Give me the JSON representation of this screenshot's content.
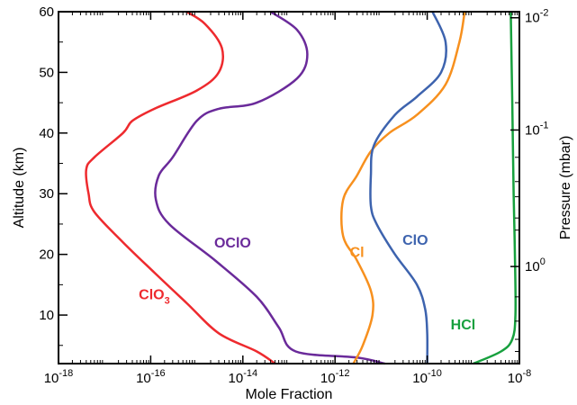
{
  "chart_data": {
    "type": "line",
    "xlabel": "Mole Fraction",
    "ylabel": "Altitude (km)",
    "y2label": "Pressure (mbar)",
    "xscale": "log",
    "xlim": [
      1e-18,
      1e-08
    ],
    "ylim": [
      2,
      60
    ],
    "x_ticks": [
      {
        "value": 1e-18,
        "base": "10",
        "exp": "-18"
      },
      {
        "value": 1e-16,
        "base": "10",
        "exp": "-16"
      },
      {
        "value": 1e-14,
        "base": "10",
        "exp": "-14"
      },
      {
        "value": 1e-12,
        "base": "10",
        "exp": "-12"
      },
      {
        "value": 1e-10,
        "base": "10",
        "exp": "-10"
      },
      {
        "value": 1e-08,
        "base": "10",
        "exp": "-8"
      }
    ],
    "y_ticks": [
      {
        "value": 10,
        "label": "10"
      },
      {
        "value": 20,
        "label": "20"
      },
      {
        "value": 30,
        "label": "30"
      },
      {
        "value": 40,
        "label": "40"
      },
      {
        "value": 50,
        "label": "50"
      },
      {
        "value": 60,
        "label": "60"
      }
    ],
    "y2_ticks": [
      {
        "altitude": 59,
        "base": "10",
        "exp": "-2"
      },
      {
        "altitude": 40.5,
        "base": "10",
        "exp": "-1"
      },
      {
        "altitude": 18,
        "base": "10",
        "exp": "0"
      }
    ],
    "series": [
      {
        "name": "ClO",
        "sub": "3",
        "color": "#ee2a2e",
        "label_pos": [
          1.2e-16,
          13.5
        ],
        "points": [
          [
            6e-16,
            60
          ],
          [
            1.5e-15,
            58
          ],
          [
            3.5e-15,
            54
          ],
          [
            3e-15,
            50
          ],
          [
            1e-15,
            47
          ],
          [
            1.2e-16,
            44
          ],
          [
            4e-17,
            42
          ],
          [
            2.5e-17,
            40
          ],
          [
            6e-18,
            36
          ],
          [
            4e-18,
            34
          ],
          [
            4.5e-18,
            30
          ],
          [
            6e-18,
            27
          ],
          [
            2.5e-17,
            22
          ],
          [
            1.2e-16,
            17
          ],
          [
            6e-16,
            12
          ],
          [
            3e-15,
            7
          ],
          [
            2e-14,
            4
          ],
          [
            5e-14,
            2
          ]
        ]
      },
      {
        "name": "OClO",
        "sub": "",
        "color": "#6a2a9a",
        "label_pos": [
          6e-15,
          22
        ],
        "points": [
          [
            4e-14,
            60
          ],
          [
            1.5e-13,
            57
          ],
          [
            2.5e-13,
            53
          ],
          [
            1.5e-13,
            49
          ],
          [
            2e-14,
            45
          ],
          [
            3e-15,
            44
          ],
          [
            1e-15,
            42
          ],
          [
            3e-16,
            36
          ],
          [
            1.5e-16,
            33
          ],
          [
            1.3e-16,
            29
          ],
          [
            2.5e-16,
            25
          ],
          [
            2.5e-15,
            19
          ],
          [
            2e-14,
            13
          ],
          [
            6e-14,
            8
          ],
          [
            1.4e-13,
            4
          ],
          [
            3e-12,
            3
          ],
          [
            1.2e-11,
            2
          ]
        ]
      },
      {
        "name": "Cl",
        "sub": "",
        "color": "#f7901e",
        "label_pos": [
          3e-12,
          20.5
        ],
        "points": [
          [
            6.5e-10,
            60
          ],
          [
            5e-10,
            55
          ],
          [
            2.5e-10,
            48
          ],
          [
            6e-11,
            43
          ],
          [
            1.5e-11,
            40
          ],
          [
            6e-12,
            37
          ],
          [
            3e-12,
            33
          ],
          [
            1.5e-12,
            29
          ],
          [
            1.5e-12,
            23
          ],
          [
            3e-12,
            19
          ],
          [
            6e-12,
            14
          ],
          [
            6.5e-12,
            10
          ],
          [
            4e-12,
            5
          ],
          [
            2.5e-12,
            2
          ]
        ]
      },
      {
        "name": "ClO",
        "sub": "",
        "color": "#3d63ae",
        "label_pos": [
          5.5e-11,
          22.5
        ],
        "points": [
          [
            1.3e-10,
            60
          ],
          [
            2.5e-10,
            55
          ],
          [
            2e-10,
            50
          ],
          [
            6e-11,
            46
          ],
          [
            2e-11,
            43
          ],
          [
            7e-12,
            38
          ],
          [
            6e-12,
            33
          ],
          [
            6e-12,
            28
          ],
          [
            8e-12,
            25
          ],
          [
            2e-11,
            20
          ],
          [
            6e-11,
            15
          ],
          [
            9e-11,
            11
          ],
          [
            1e-10,
            7
          ],
          [
            1e-10,
            2
          ]
        ]
      },
      {
        "name": "HCl",
        "sub": "",
        "color": "#17a03e",
        "label_pos": [
          6e-10,
          8.5
        ],
        "points": [
          [
            6.5e-09,
            60
          ],
          [
            7e-09,
            45
          ],
          [
            7.5e-09,
            30
          ],
          [
            8e-09,
            20
          ],
          [
            8.2e-09,
            10
          ],
          [
            7e-09,
            6
          ],
          [
            4e-09,
            4
          ],
          [
            1e-09,
            2
          ]
        ]
      }
    ]
  }
}
